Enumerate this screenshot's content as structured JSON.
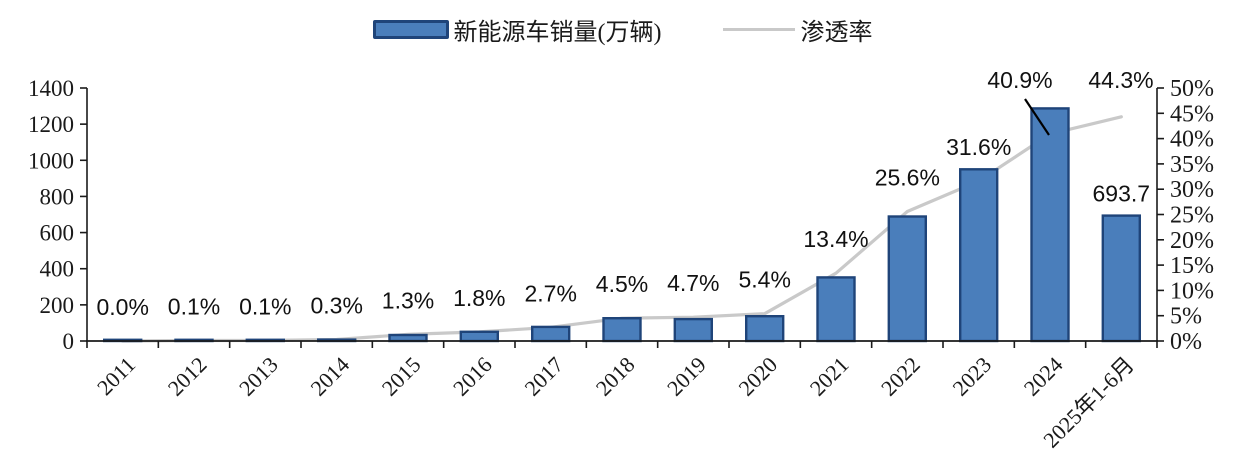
{
  "legend": {
    "bar_label": "新能源车销量(万辆)",
    "line_label": "渗透率"
  },
  "colors": {
    "bar_fill": "#4a7ebb",
    "bar_border": "#1f4479",
    "line": "#c9c9c9",
    "axis": "#1a1a1a",
    "annotation": "#000000"
  },
  "chart_data": {
    "type": "bar+line combo",
    "categories": [
      "2011",
      "2012",
      "2013",
      "2014",
      "2015",
      "2016",
      "2017",
      "2018",
      "2019",
      "2020",
      "2021",
      "2022",
      "2023",
      "2024",
      "2025年1-6月"
    ],
    "series": [
      {
        "name": "新能源车销量(万辆)",
        "type": "bar",
        "axis": "left",
        "values": [
          1,
          1.5,
          2,
          7.5,
          33,
          51,
          78,
          126,
          121,
          137,
          352,
          689,
          950,
          1287,
          693.7
        ]
      },
      {
        "name": "渗透率",
        "type": "line",
        "axis": "right",
        "values": [
          0.0,
          0.1,
          0.1,
          0.3,
          1.3,
          1.8,
          2.7,
          4.5,
          4.7,
          5.4,
          13.4,
          25.6,
          31.6,
          40.9,
          44.3
        ]
      }
    ],
    "point_labels": [
      "0.0%",
      "0.1%",
      "0.1%",
      "0.3%",
      "1.3%",
      "1.8%",
      "2.7%",
      "4.5%",
      "4.7%",
      "5.4%",
      "13.4%",
      "25.6%",
      "31.6%",
      "40.9%",
      "44.3%"
    ],
    "bar_value_labels": {
      "14": "693.7"
    },
    "left_axis": {
      "min": 0,
      "max": 1400,
      "step": 200,
      "ticks": [
        "0",
        "200",
        "400",
        "600",
        "800",
        "1000",
        "1200",
        "1400"
      ]
    },
    "right_axis": {
      "min": 0,
      "max": 50,
      "step": 5,
      "ticks": [
        "0%",
        "5%",
        "10%",
        "15%",
        "20%",
        "25%",
        "30%",
        "35%",
        "40%",
        "45%",
        "50%"
      ]
    },
    "grid": false,
    "legend_position": "top-center",
    "annotations": [
      {
        "type": "leader-line",
        "from_label": "40.9%",
        "to": "penetration line point at 2024"
      }
    ]
  }
}
